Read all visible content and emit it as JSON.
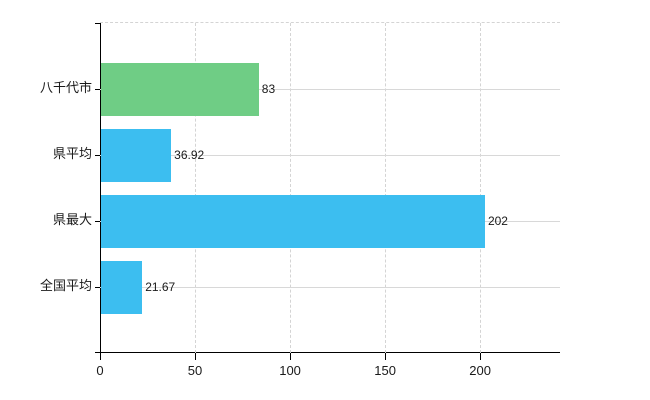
{
  "chart_data": {
    "type": "bar",
    "orientation": "horizontal",
    "title": "",
    "xlabel": "",
    "ylabel": "",
    "categories": [
      "八千代市",
      "県平均",
      "県最大",
      "全国平均"
    ],
    "values": [
      83,
      36.92,
      202,
      21.67
    ],
    "value_labels": [
      "83",
      "36.92",
      "202",
      "21.67"
    ],
    "series_colors": [
      "#6fcd85",
      "#3cbef0",
      "#3cbef0",
      "#3cbef0"
    ],
    "x_ticks": [
      "0",
      "50",
      "100",
      "150",
      "200"
    ],
    "x_tick_values": [
      0,
      50,
      100,
      150,
      200
    ],
    "xlim": [
      0,
      242
    ],
    "grid": {
      "vertical_style": "dashed",
      "horizontal_style": "solid",
      "top_boundary_style": "dashed"
    },
    "legend": null
  },
  "colors": {
    "axis": "#000000",
    "text": "#1a1a1a",
    "grid": "#d4d4d4",
    "background": "#ffffff"
  }
}
